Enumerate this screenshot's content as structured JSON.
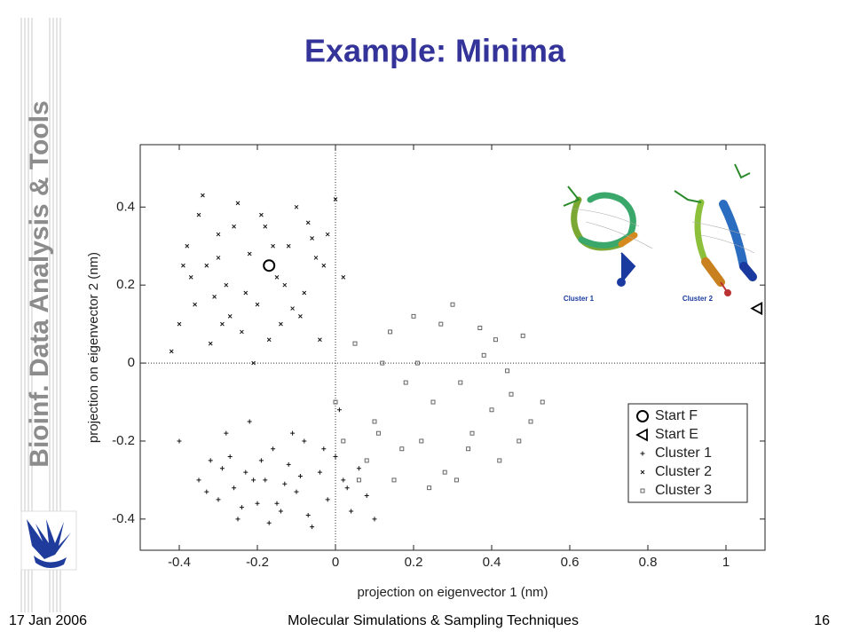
{
  "slide": {
    "title": "Example: Minima",
    "side_title": "Bioinf. Data Analysis & Tools",
    "footer": {
      "date": "17 Jan 2006",
      "course": "Molecular Simulations & Sampling Techniques",
      "page": "16"
    }
  },
  "chart_data": {
    "type": "scatter",
    "x_label": "projection on eigenvector 1 (nm)",
    "y_label": "projection on eigenvector 2 (nm)",
    "xlim": [
      -0.5,
      1.1
    ],
    "ylim": [
      -0.48,
      0.56
    ],
    "xticks": [
      -0.4,
      -0.2,
      0,
      0.2,
      0.4,
      0.6,
      0.8,
      1
    ],
    "yticks": [
      -0.4,
      -0.2,
      0,
      0.2,
      0.4
    ],
    "inset_labels": [
      "Cluster 1",
      "Cluster 2"
    ],
    "series": [
      {
        "name": "Start F",
        "marker": "circle",
        "color": "#000000",
        "x": [
          -0.17
        ],
        "y": [
          0.25
        ]
      },
      {
        "name": "Start E",
        "marker": "triangle",
        "color": "#000000",
        "x": [
          1.08
        ],
        "y": [
          0.14
        ]
      },
      {
        "name": "Cluster 1",
        "marker": "plus",
        "color": "#111111",
        "x": [
          -0.4,
          -0.35,
          -0.32,
          -0.3,
          -0.28,
          -0.26,
          -0.25,
          -0.23,
          -0.22,
          -0.2,
          -0.18,
          -0.16,
          -0.14,
          -0.12,
          -0.1,
          -0.08,
          -0.06,
          -0.04,
          -0.02,
          0.0,
          0.02,
          0.04,
          0.06,
          0.08,
          0.1,
          -0.33,
          -0.27,
          -0.21,
          -0.15,
          -0.09,
          -0.03,
          0.03,
          -0.24,
          -0.19,
          -0.13,
          -0.07,
          0.01,
          -0.29,
          -0.17,
          -0.11
        ],
        "y": [
          -0.2,
          -0.3,
          -0.25,
          -0.35,
          -0.18,
          -0.32,
          -0.4,
          -0.28,
          -0.15,
          -0.36,
          -0.3,
          -0.22,
          -0.38,
          -0.26,
          -0.33,
          -0.2,
          -0.42,
          -0.28,
          -0.35,
          -0.24,
          -0.3,
          -0.38,
          -0.27,
          -0.34,
          -0.4,
          -0.33,
          -0.24,
          -0.3,
          -0.36,
          -0.29,
          -0.22,
          -0.32,
          -0.37,
          -0.25,
          -0.31,
          -0.39,
          -0.12,
          -0.27,
          -0.41,
          -0.18
        ]
      },
      {
        "name": "Cluster 2",
        "marker": "cross",
        "color": "#111111",
        "x": [
          -0.38,
          -0.35,
          -0.33,
          -0.3,
          -0.28,
          -0.25,
          -0.22,
          -0.2,
          -0.18,
          -0.15,
          -0.12,
          -0.1,
          -0.08,
          -0.05,
          -0.02,
          0.0,
          -0.4,
          -0.36,
          -0.32,
          -0.27,
          -0.24,
          -0.21,
          -0.17,
          -0.13,
          -0.09,
          -0.06,
          -0.03,
          -0.42,
          -0.37,
          -0.3,
          -0.26,
          -0.19,
          -0.14,
          -0.07,
          -0.34,
          -0.29,
          -0.23,
          -0.16,
          -0.11,
          -0.04,
          0.02,
          -0.39,
          -0.31
        ],
        "y": [
          0.3,
          0.38,
          0.25,
          0.33,
          0.2,
          0.41,
          0.28,
          0.15,
          0.35,
          0.22,
          0.3,
          0.4,
          0.18,
          0.27,
          0.33,
          0.42,
          0.1,
          0.15,
          0.05,
          0.12,
          0.08,
          0.0,
          0.06,
          0.2,
          0.12,
          0.32,
          0.25,
          0.03,
          0.22,
          0.27,
          0.35,
          0.38,
          0.1,
          0.36,
          0.43,
          0.1,
          0.18,
          0.3,
          0.14,
          0.06,
          0.22,
          0.25,
          0.17
        ]
      },
      {
        "name": "Cluster 3",
        "marker": "square",
        "color": "#555555",
        "x": [
          0.0,
          0.02,
          0.05,
          0.08,
          0.1,
          0.12,
          0.15,
          0.18,
          0.2,
          0.22,
          0.25,
          0.28,
          0.3,
          0.32,
          0.35,
          0.38,
          0.4,
          0.42,
          0.45,
          0.48,
          0.5,
          0.53,
          0.06,
          0.14,
          0.24,
          0.34,
          0.44,
          0.27,
          0.37,
          0.17,
          0.31,
          0.21,
          0.41,
          0.11,
          0.47
        ],
        "y": [
          -0.1,
          -0.2,
          0.05,
          -0.25,
          -0.15,
          0.0,
          -0.3,
          -0.05,
          0.12,
          -0.2,
          -0.1,
          -0.28,
          0.15,
          -0.05,
          -0.18,
          0.02,
          -0.12,
          -0.25,
          -0.08,
          0.07,
          -0.15,
          -0.1,
          -0.3,
          0.08,
          -0.32,
          -0.22,
          -0.02,
          0.1,
          0.09,
          -0.22,
          -0.3,
          0.0,
          0.06,
          -0.18,
          -0.2
        ]
      }
    ]
  }
}
